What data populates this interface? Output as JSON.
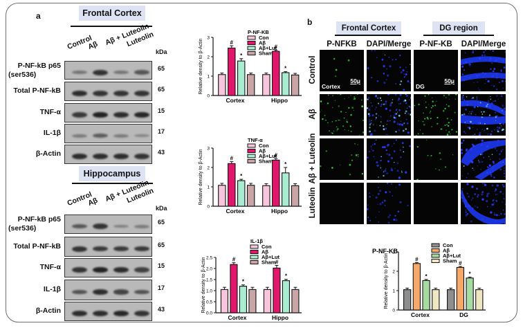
{
  "figure": {
    "panel_a": {
      "letter": "a",
      "kda_label": "kDa",
      "lanes": [
        "Control",
        "Aβ",
        "Aβ + Luteolin",
        "Luteolin"
      ],
      "regions": [
        {
          "title": "Frontal Cortex",
          "rows": [
            {
              "label": "P-NF-kB p65",
              "sublabel": "(ser536)",
              "kda": "65",
              "intensity": [
                0.25,
                0.8,
                0.25,
                0.5
              ]
            },
            {
              "label": "Total P-NF-kB",
              "sublabel": "",
              "kda": "65",
              "intensity": [
                0.85,
                0.8,
                0.8,
                0.8
              ]
            },
            {
              "label": "TNF-α",
              "sublabel": "",
              "kda": "15",
              "intensity": [
                0.75,
                0.95,
                0.85,
                0.9
              ]
            },
            {
              "label": "IL-1β",
              "sublabel": "",
              "kda": "17",
              "intensity": [
                0.2,
                0.45,
                0.2,
                0.1
              ]
            },
            {
              "label": "β-Actin",
              "sublabel": "",
              "kda": "43",
              "intensity": [
                0.85,
                0.85,
                0.85,
                0.8
              ]
            }
          ]
        },
        {
          "title": "Hippocampus",
          "rows": [
            {
              "label": "P-NF-kB p65",
              "sublabel": "(ser536)",
              "kda": "65",
              "intensity": [
                0.5,
                0.8,
                0.15,
                0.2
              ]
            },
            {
              "label": "Total P-NF-kB",
              "sublabel": "",
              "kda": "65",
              "intensity": [
                0.8,
                0.75,
                0.75,
                0.75
              ]
            },
            {
              "label": "TNF-α",
              "sublabel": "",
              "kda": "15",
              "intensity": [
                0.8,
                0.95,
                0.85,
                0.7
              ]
            },
            {
              "label": "IL-1β",
              "sublabel": "",
              "kda": "17",
              "intensity": [
                0.55,
                0.85,
                0.65,
                0.55
              ]
            },
            {
              "label": "β-Actin",
              "sublabel": "",
              "kda": "43",
              "intensity": [
                0.85,
                0.85,
                0.9,
                0.8
              ]
            }
          ]
        }
      ]
    },
    "panel_b": {
      "letter": "b",
      "region_titles": [
        "Frontal Cortex",
        "DG region"
      ],
      "column_headers": [
        "P-NFKB",
        "DAPI/Merge",
        "P-NF-KB",
        "DAPI/Merge"
      ],
      "row_headers": [
        "Control",
        "Aβ",
        "Aβ + Luteolin",
        "Luteolin"
      ],
      "inset_labels": {
        "cortex": "Cortex",
        "dg": "DG",
        "scale_bar": "50μ"
      }
    }
  },
  "chart_data": [
    {
      "type": "bar",
      "title": "P-NF-KB",
      "categories": [
        "Cortex",
        "Hippo"
      ],
      "series": [
        {
          "name": "Con",
          "color": "#f7c6dc",
          "values": [
            1.08,
            1.08
          ],
          "errors": [
            0.08,
            0.08
          ],
          "annotations": [
            "",
            ""
          ]
        },
        {
          "name": "Aβ",
          "color": "#e0176a",
          "values": [
            2.45,
            2.28
          ],
          "errors": [
            0.12,
            0.06
          ],
          "annotations": [
            "#",
            "#"
          ]
        },
        {
          "name": "Aβ+Lut",
          "color": "#a9ecd2",
          "values": [
            1.78,
            1.18
          ],
          "errors": [
            0.12,
            0.05
          ],
          "annotations": [
            "*",
            "*"
          ]
        },
        {
          "name": "Sham",
          "color": "#c9a5a5",
          "values": [
            1.08,
            1.06
          ],
          "errors": [
            0.08,
            0.08
          ],
          "annotations": [
            "",
            ""
          ]
        }
      ],
      "xlabel": "",
      "ylabel": "Relative density to β-Actin",
      "ylim": [
        0,
        3
      ],
      "yticks": [
        "0",
        "1",
        "2",
        "3"
      ],
      "grid": false,
      "legend_position": "top-right"
    },
    {
      "type": "bar",
      "title": "TNF-α",
      "categories": [
        "Cortex",
        "Hippo"
      ],
      "series": [
        {
          "name": "Con",
          "color": "#f7c6dc",
          "values": [
            1.08,
            1.06
          ],
          "errors": [
            0.1,
            0.1
          ],
          "annotations": [
            "",
            ""
          ]
        },
        {
          "name": "Aβ",
          "color": "#e0176a",
          "values": [
            2.2,
            2.38
          ],
          "errors": [
            0.1,
            0.08
          ],
          "annotations": [
            "#",
            "#"
          ]
        },
        {
          "name": "Aβ+Lut",
          "color": "#a9ecd2",
          "values": [
            1.32,
            1.72
          ],
          "errors": [
            0.07,
            0.28
          ],
          "annotations": [
            "*",
            "*"
          ]
        },
        {
          "name": "Sham",
          "color": "#c9a5a5",
          "values": [
            1.08,
            1.06
          ],
          "errors": [
            0.1,
            0.1
          ],
          "annotations": [
            "",
            ""
          ]
        }
      ],
      "xlabel": "",
      "ylabel": "Relative density to β-Actin",
      "ylim": [
        0,
        3
      ],
      "yticks": [
        "0",
        "1",
        "2",
        "3"
      ],
      "grid": false,
      "legend_position": "top-right"
    },
    {
      "type": "bar",
      "title": "IL-1β",
      "categories": [
        "Cortex",
        "Hippo"
      ],
      "series": [
        {
          "name": "Con",
          "color": "#f7c6dc",
          "values": [
            1.05,
            1.05
          ],
          "errors": [
            0.1,
            0.1
          ],
          "annotations": [
            "",
            ""
          ]
        },
        {
          "name": "Aβ",
          "color": "#e0176a",
          "values": [
            2.18,
            2.02
          ],
          "errors": [
            0.08,
            0.12
          ],
          "annotations": [
            "#",
            "#"
          ]
        },
        {
          "name": "Aβ+Lut",
          "color": "#a9ecd2",
          "values": [
            1.2,
            1.45
          ],
          "errors": [
            0.06,
            0.06
          ],
          "annotations": [
            "*",
            "*"
          ]
        },
        {
          "name": "Sham",
          "color": "#c9a5a5",
          "values": [
            1.05,
            1.05
          ],
          "errors": [
            0.1,
            0.1
          ],
          "annotations": [
            "",
            ""
          ]
        }
      ],
      "xlabel": "",
      "ylabel": "Relative density to β-Actin",
      "ylim": [
        0,
        2.5
      ],
      "yticks": [
        "0.0",
        "0.5",
        "1.0",
        "1.5",
        "2.0",
        "2.5"
      ],
      "grid": false,
      "legend_position": "top-right"
    },
    {
      "type": "bar",
      "title": "P-NF-KB",
      "categories": [
        "Cortex",
        "DG"
      ],
      "series": [
        {
          "name": "Con",
          "color": "#8e8e8e",
          "values": [
            1.05,
            1.05
          ],
          "errors": [
            0.08,
            0.08
          ],
          "annotations": [
            "",
            ""
          ]
        },
        {
          "name": "Aβ",
          "color": "#f5a96b",
          "values": [
            2.4,
            2.2
          ],
          "errors": [
            0.05,
            0.05
          ],
          "annotations": [
            "#",
            "#"
          ]
        },
        {
          "name": "Aβ+Lut",
          "color": "#a8dba2",
          "values": [
            1.52,
            1.65
          ],
          "errors": [
            0.06,
            0.05
          ],
          "annotations": [
            "*",
            "*"
          ]
        },
        {
          "name": "Sham",
          "color": "#efe6c2",
          "values": [
            1.05,
            1.05
          ],
          "errors": [
            0.08,
            0.08
          ],
          "annotations": [
            "",
            ""
          ]
        }
      ],
      "xlabel": "",
      "ylabel": "Relative density to β-Actin",
      "ylim": [
        0,
        3
      ],
      "yticks": [
        "0",
        "1",
        "2",
        "3"
      ],
      "grid": false,
      "legend_position": "top-right"
    }
  ]
}
